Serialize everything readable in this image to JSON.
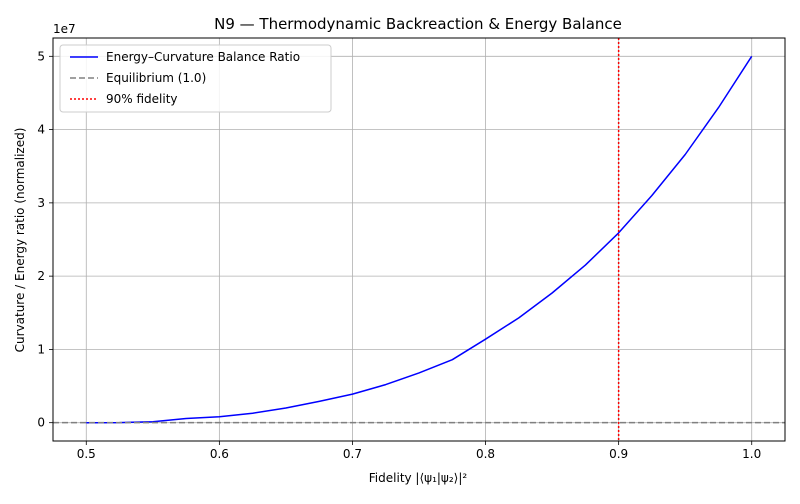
{
  "chart_data": {
    "type": "line",
    "title": "N9 — Thermodynamic Backreaction & Energy Balance",
    "xlabel": "Fidelity |⟨ψ₁|ψ₂⟩|²",
    "ylabel": "Curvature / Energy ratio (normalized)",
    "y_offset_label": "1e7",
    "y_scale_factor": 10000000,
    "xlim": [
      0.475,
      1.025
    ],
    "ylim": [
      -2500000,
      52500000
    ],
    "x_ticks": [
      0.5,
      0.6,
      0.7,
      0.8,
      0.9,
      1.0
    ],
    "x_tick_labels": [
      "0.5",
      "0.6",
      "0.7",
      "0.8",
      "0.9",
      "1.0"
    ],
    "y_ticks": [
      0,
      10000000,
      20000000,
      30000000,
      40000000,
      50000000
    ],
    "y_tick_labels": [
      "0",
      "1",
      "2",
      "3",
      "4",
      "5"
    ],
    "grid": true,
    "legend_position": "top-left",
    "series": [
      {
        "name": "Energy–Curvature Balance Ratio",
        "color": "#0000ff",
        "style": "solid",
        "x": [
          0.5,
          0.525,
          0.55,
          0.575,
          0.6,
          0.625,
          0.65,
          0.675,
          0.7,
          0.725,
          0.75,
          0.775,
          0.8,
          0.825,
          0.85,
          0.875,
          0.9,
          0.925,
          0.95,
          0.975,
          1.0
        ],
        "y": [
          0,
          7700,
          130000,
          570000,
          800000,
          1300000,
          2000000,
          2900000,
          3900000,
          5200000,
          6800000,
          8600000,
          11400000,
          14300000,
          17700000,
          21500000,
          25900000,
          31000000,
          36600000,
          43000000,
          50000000
        ]
      },
      {
        "name": "Equilibrium (1.0)",
        "color": "#808080",
        "style": "dashed",
        "type": "hline",
        "y": 1
      },
      {
        "name": "90% fidelity",
        "color": "#ff0000",
        "style": "dotted",
        "type": "vline",
        "x": 0.9
      }
    ]
  }
}
